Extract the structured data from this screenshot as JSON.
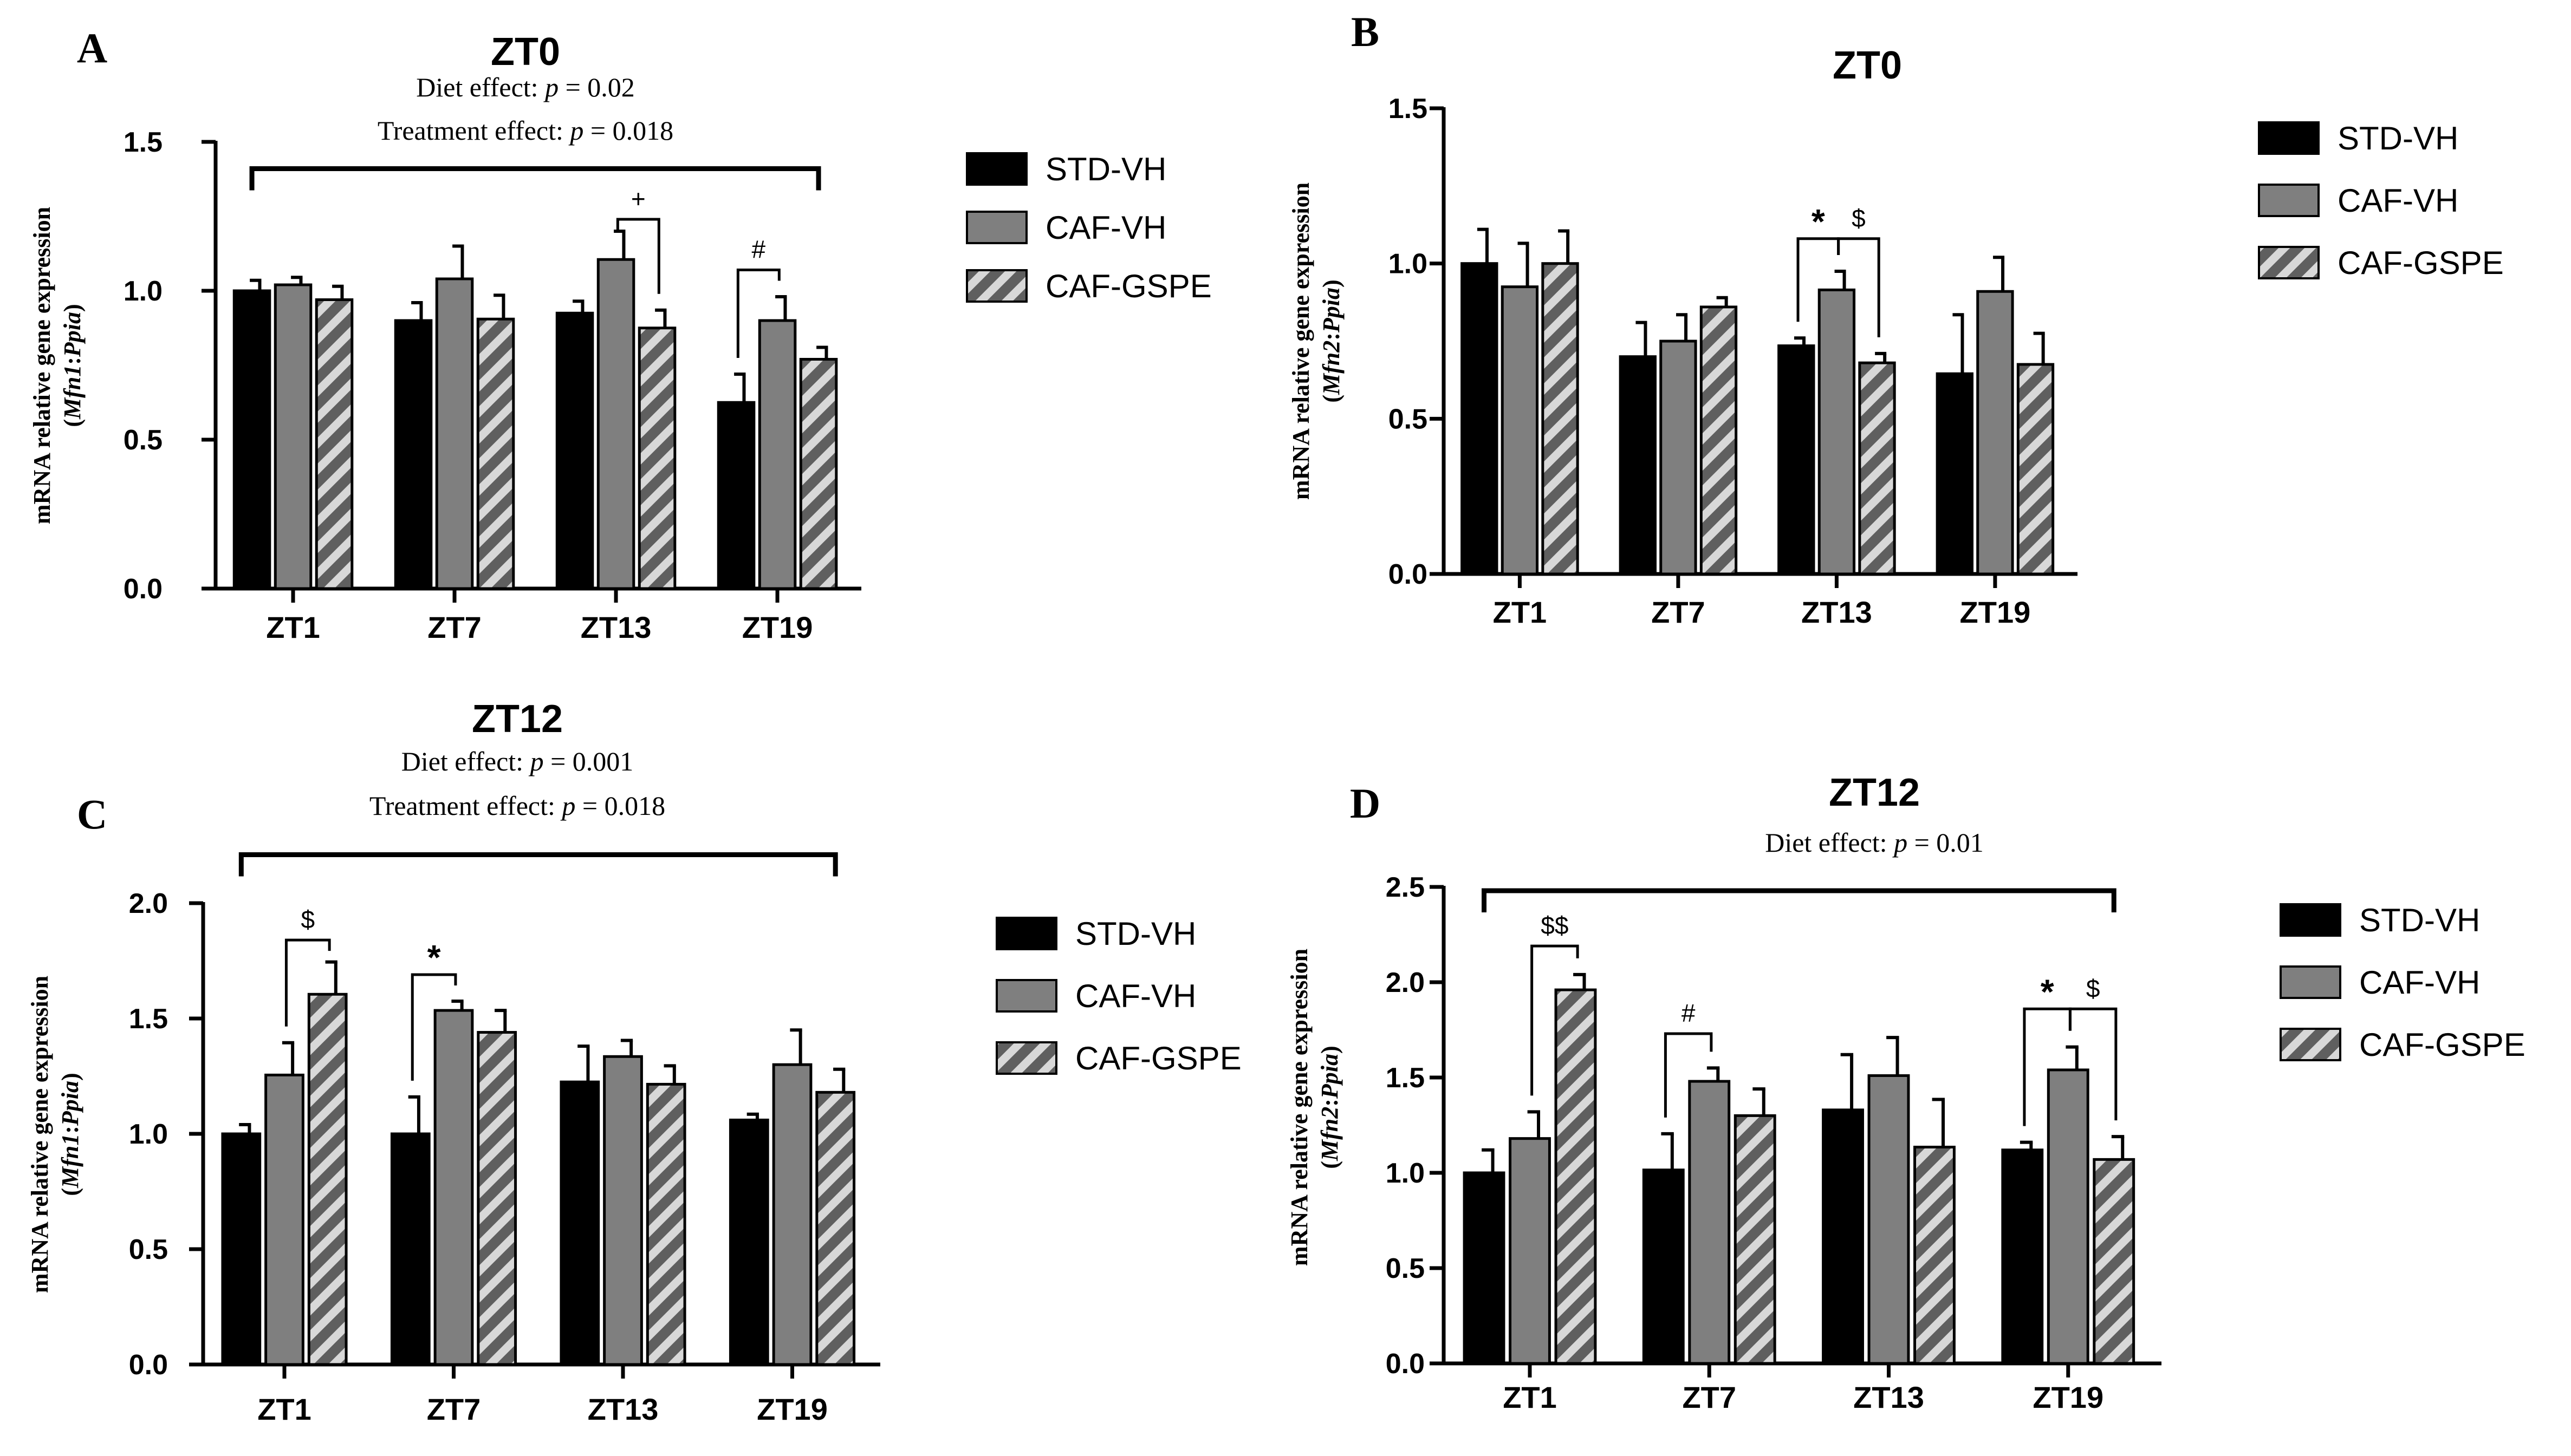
{
  "figure": {
    "colors": {
      "std_vh": "#000000",
      "caf_vh": "#7f7f7f",
      "caf_gspe_bg": "#5f5f5f",
      "caf_gspe_stripe": "#d8d8d8",
      "axis": "#000000"
    },
    "legend": [
      "STD-VH",
      "CAF-VH",
      "CAF-GSPE"
    ],
    "series_styles": [
      "solid-black",
      "solid-gray",
      "hatched"
    ]
  },
  "chart_data": [
    {
      "panel": "A",
      "type": "bar",
      "title": "ZT0",
      "subtitle_lines": [
        {
          "pre": "Diet effect: ",
          "p": "p",
          "post": " = 0.02"
        },
        {
          "pre": "Treatment effect: ",
          "p": "p",
          "post": " = 0.018"
        }
      ],
      "ylabel": "mRNA relative gene expression",
      "ylabel_gene": "(Mfn1:Ppia)",
      "ylim": [
        0,
        1.5
      ],
      "yticks": [
        0.0,
        0.5,
        1.0,
        1.5
      ],
      "ytick_labels": [
        "0.0",
        "0.5",
        "1.0",
        "1.5"
      ],
      "categories": [
        "ZT1",
        "ZT7",
        "ZT13",
        "ZT19"
      ],
      "series": [
        {
          "name": "STD-VH",
          "values": [
            1.0,
            0.9,
            0.925,
            0.625
          ],
          "errors": [
            0.035,
            0.06,
            0.04,
            0.095
          ]
        },
        {
          "name": "CAF-VH",
          "values": [
            1.02,
            1.04,
            1.105,
            0.9
          ],
          "errors": [
            0.025,
            0.11,
            0.095,
            0.08
          ]
        },
        {
          "name": "CAF-GSPE",
          "values": [
            0.97,
            0.905,
            0.875,
            0.77
          ],
          "errors": [
            0.045,
            0.08,
            0.06,
            0.04
          ]
        }
      ],
      "top_bracket": true,
      "top_bracket_y": 1.41,
      "annotations": [
        {
          "label": "+",
          "category": 2,
          "from": 1,
          "to": 2,
          "y": 1.24
        },
        {
          "label": "#",
          "category": 3,
          "from": 0,
          "to": 1,
          "y": 1.07
        }
      ]
    },
    {
      "panel": "B",
      "type": "bar",
      "title": "ZT0",
      "subtitle_lines": [],
      "ylabel": "mRNA relative gene expression",
      "ylabel_gene": "(Mfn2:Ppia)",
      "ylim": [
        0,
        1.5
      ],
      "yticks": [
        0.0,
        0.5,
        1.0,
        1.5
      ],
      "ytick_labels": [
        "0.0",
        "0.5",
        "1.0",
        "1.5"
      ],
      "categories": [
        "ZT1",
        "ZT7",
        "ZT13",
        "ZT19"
      ],
      "series": [
        {
          "name": "STD-VH",
          "values": [
            1.0,
            0.7,
            0.735,
            0.645
          ],
          "errors": [
            0.11,
            0.11,
            0.025,
            0.19
          ]
        },
        {
          "name": "CAF-VH",
          "values": [
            0.925,
            0.75,
            0.915,
            0.91
          ],
          "errors": [
            0.14,
            0.085,
            0.06,
            0.11
          ]
        },
        {
          "name": "CAF-GSPE",
          "values": [
            1.0,
            0.86,
            0.68,
            0.675
          ],
          "errors": [
            0.105,
            0.03,
            0.03,
            0.1
          ]
        }
      ],
      "top_bracket": false,
      "annotations": [
        {
          "label": "*",
          "category": 2,
          "from": 0,
          "to": 1,
          "y": 1.08
        },
        {
          "label": "$",
          "category": 2,
          "from": 1,
          "to": 2,
          "y": 1.08
        }
      ]
    },
    {
      "panel": "C",
      "type": "bar",
      "title": "ZT12",
      "subtitle_lines": [
        {
          "pre": "Diet effect: ",
          "p": "p",
          "post": " = 0.001"
        },
        {
          "pre": "Treatment effect: ",
          "p": "p",
          "post": " = 0.018"
        }
      ],
      "ylabel": "mRNA relative gene expression",
      "ylabel_gene": "(Mfn1:Ppia)",
      "ylim": [
        0,
        2.0
      ],
      "yticks": [
        0.0,
        0.5,
        1.0,
        1.5,
        2.0
      ],
      "ytick_labels": [
        "0.0",
        "0.5",
        "1.0",
        "1.5",
        "2.0"
      ],
      "categories": [
        "ZT1",
        "ZT7",
        "ZT13",
        "ZT19"
      ],
      "series": [
        {
          "name": "STD-VH",
          "values": [
            1.0,
            1.0,
            1.225,
            1.06
          ],
          "errors": [
            0.04,
            0.16,
            0.155,
            0.025
          ]
        },
        {
          "name": "CAF-VH",
          "values": [
            1.255,
            1.535,
            1.335,
            1.3
          ],
          "errors": [
            0.14,
            0.04,
            0.07,
            0.15
          ]
        },
        {
          "name": "CAF-GSPE",
          "values": [
            1.605,
            1.44,
            1.215,
            1.18
          ],
          "errors": [
            0.14,
            0.095,
            0.08,
            0.1
          ]
        }
      ],
      "top_bracket": true,
      "top_bracket_y": 2.21,
      "annotations": [
        {
          "label": "$",
          "category": 0,
          "from": 1,
          "to": 2,
          "y": 1.84
        },
        {
          "label": "*",
          "category": 1,
          "from": 0,
          "to": 1,
          "y": 1.69
        }
      ]
    },
    {
      "panel": "D",
      "type": "bar",
      "title": "ZT12",
      "subtitle_lines": [
        {
          "pre": "Diet effect: ",
          "p": "p",
          "post": " = 0.01"
        }
      ],
      "ylabel": "mRNA relative gene expression",
      "ylabel_gene": "(Mfn2:Ppia)",
      "ylim": [
        0,
        2.5
      ],
      "yticks": [
        0.0,
        0.5,
        1.0,
        1.5,
        2.0,
        2.5
      ],
      "ytick_labels": [
        "0.0",
        "0.5",
        "1.0",
        "1.5",
        "2.0",
        "2.5"
      ],
      "categories": [
        "ZT1",
        "ZT7",
        "ZT13",
        "ZT19"
      ],
      "series": [
        {
          "name": "STD-VH",
          "values": [
            1.0,
            1.015,
            1.33,
            1.12
          ],
          "errors": [
            0.12,
            0.19,
            0.29,
            0.04
          ]
        },
        {
          "name": "CAF-VH",
          "values": [
            1.18,
            1.48,
            1.51,
            1.54
          ],
          "errors": [
            0.14,
            0.07,
            0.2,
            0.12
          ]
        },
        {
          "name": "CAF-GSPE",
          "values": [
            1.96,
            1.3,
            1.135,
            1.07
          ],
          "errors": [
            0.08,
            0.14,
            0.25,
            0.12
          ]
        }
      ],
      "top_bracket": true,
      "top_bracket_y": 2.48,
      "annotations": [
        {
          "label": "$$",
          "category": 0,
          "from": 1,
          "to": 2,
          "y": 2.19
        },
        {
          "label": "#",
          "category": 1,
          "from": 0,
          "to": 1,
          "y": 1.73
        },
        {
          "label": "*",
          "category": 3,
          "from": 0,
          "to": 1,
          "y": 1.86
        },
        {
          "label": "$",
          "category": 3,
          "from": 1,
          "to": 2,
          "y": 1.86
        }
      ]
    }
  ],
  "panels": {
    "A": {
      "letter": "A"
    },
    "B": {
      "letter": "B"
    },
    "C": {
      "letter": "C"
    },
    "D": {
      "letter": "D"
    }
  }
}
